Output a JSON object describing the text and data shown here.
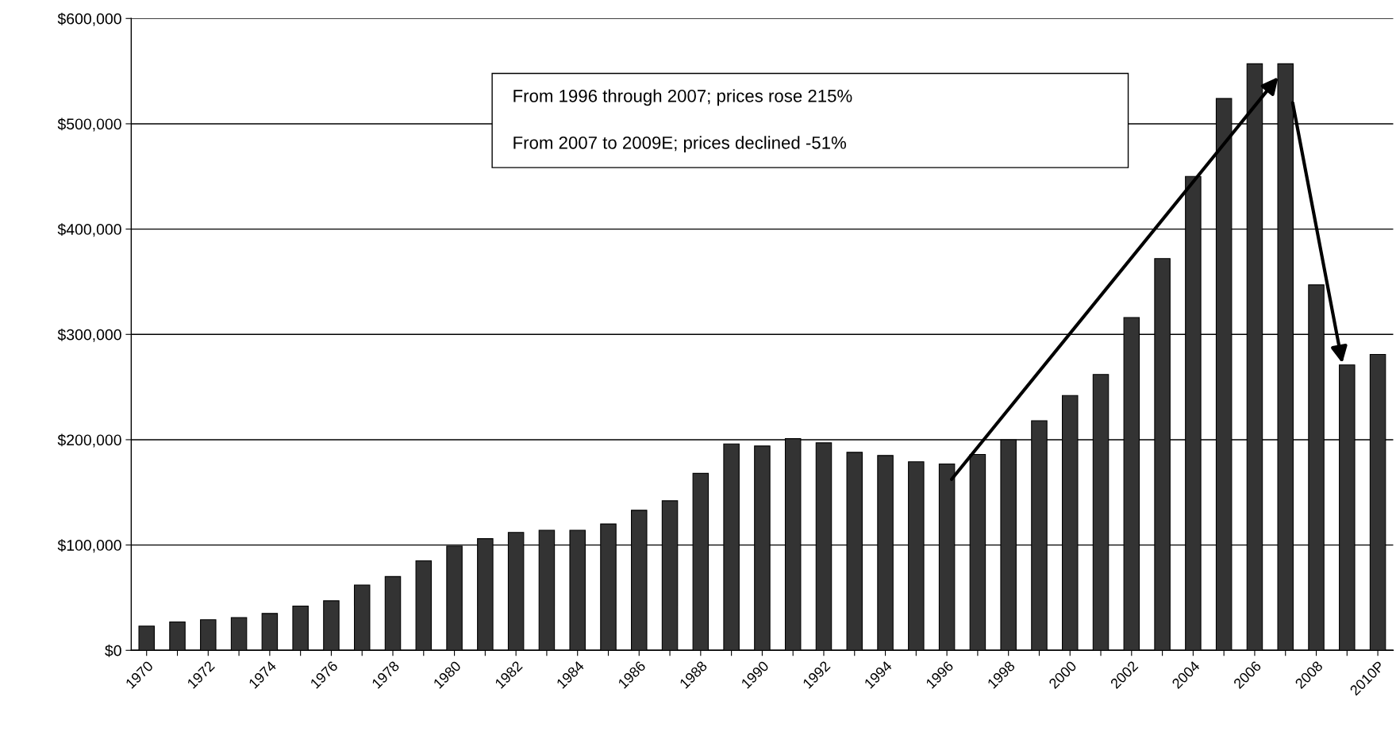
{
  "chart_data": {
    "type": "bar",
    "categories": [
      "1970",
      null,
      "1972",
      null,
      "1974",
      null,
      "1976",
      null,
      "1978",
      null,
      "1980",
      null,
      "1982",
      null,
      "1984",
      null,
      "1986",
      null,
      "1988",
      null,
      "1990",
      null,
      "1992",
      null,
      "1994",
      null,
      "1996",
      null,
      "1998",
      null,
      "2000",
      null,
      "2002",
      null,
      "2004",
      null,
      "2006",
      null,
      "2008",
      null,
      "2010P"
    ],
    "values": [
      23000,
      27000,
      29000,
      31000,
      35000,
      42000,
      47000,
      62000,
      70000,
      85000,
      99000,
      106000,
      112000,
      114000,
      114000,
      120000,
      133000,
      142000,
      168000,
      196000,
      194000,
      201000,
      197000,
      188000,
      185000,
      179000,
      177000,
      186000,
      200000,
      218000,
      242000,
      262000,
      316000,
      372000,
      450000,
      524000,
      557000,
      557000,
      347000,
      271000,
      281000
    ],
    "color": "#333333",
    "ylim": [
      0,
      600000
    ],
    "yticks": [
      {
        "value": 0,
        "label": "$0"
      },
      {
        "value": 100000,
        "label": "$100,000"
      },
      {
        "value": 200000,
        "label": "$200,000"
      },
      {
        "value": 300000,
        "label": "$300,000"
      },
      {
        "value": 400000,
        "label": "$400,000"
      },
      {
        "value": 500000,
        "label": "$500,000"
      },
      {
        "value": 600000,
        "label": "$600,000"
      }
    ],
    "grid": "y",
    "annotations": [
      "From 1996 through 2007; prices rose 215%",
      "From 2007 to 2009E; prices declined -51%"
    ]
  }
}
